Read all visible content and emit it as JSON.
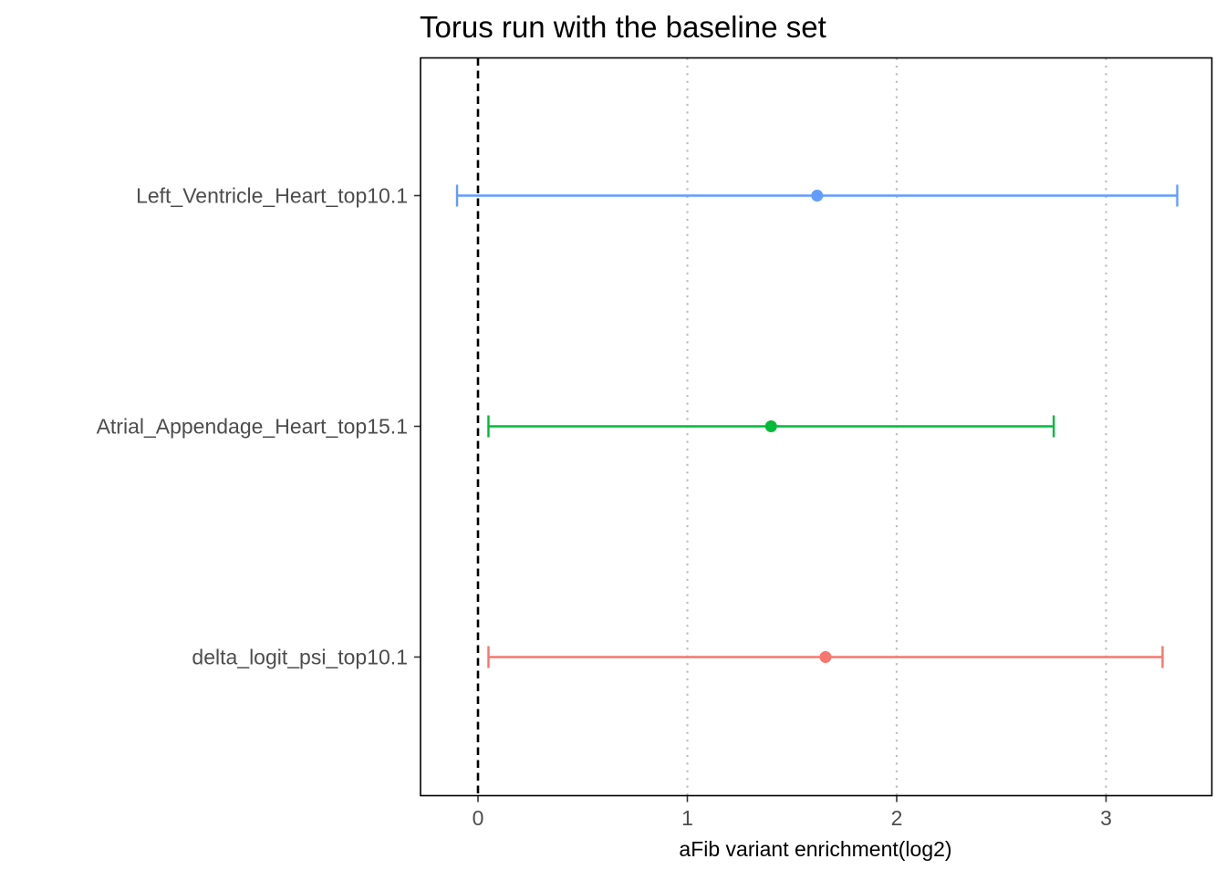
{
  "chart_data": {
    "type": "forest",
    "title": "Torus run with the baseline set",
    "xlabel": "aFib variant enrichment(log2)",
    "ylabel": "",
    "xlim": [
      -0.27,
      3.5
    ],
    "x_ticks": [
      0,
      1,
      2,
      3
    ],
    "grid": "vertical dotted at x ticks",
    "reference_line": {
      "x": 0,
      "style": "dashed",
      "color": "#000000"
    },
    "categories": [
      "Left_Ventricle_Heart_top10.1",
      "Atrial_Appendage_Heart_top15.1",
      "delta_logit_psi_top10.1"
    ],
    "series": [
      {
        "category": "Left_Ventricle_Heart_top10.1",
        "estimate": 1.62,
        "low": -0.1,
        "high": 3.34,
        "color": "#619CFF"
      },
      {
        "category": "Atrial_Appendage_Heart_top15.1",
        "estimate": 1.4,
        "low": 0.05,
        "high": 2.75,
        "color": "#00BA38"
      },
      {
        "category": "delta_logit_psi_top10.1",
        "estimate": 1.66,
        "low": 0.05,
        "high": 3.27,
        "color": "#F8766D"
      }
    ]
  }
}
